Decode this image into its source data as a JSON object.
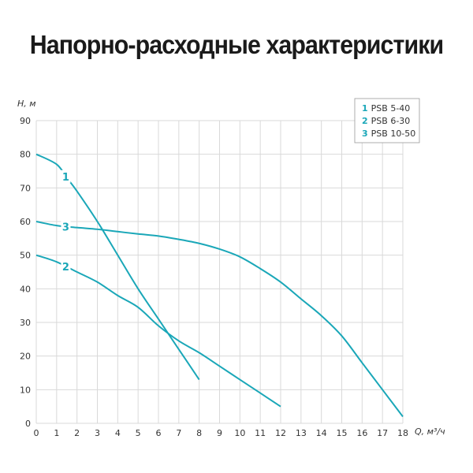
{
  "chart_data": {
    "type": "line",
    "title": "Напорно-расходные характеристики",
    "xlabel": "Q, м³/ч",
    "ylabel": "H, м",
    "xlim": [
      0,
      18
    ],
    "ylim": [
      0,
      90
    ],
    "xticks": [
      0,
      1,
      2,
      3,
      4,
      5,
      6,
      7,
      8,
      9,
      10,
      11,
      12,
      13,
      14,
      15,
      16,
      17,
      18
    ],
    "yticks": [
      0,
      10,
      20,
      30,
      40,
      50,
      60,
      70,
      80,
      90
    ],
    "grid": true,
    "legend_position": "top-right",
    "color": "#1aa7b8",
    "series": [
      {
        "id": "1",
        "name": "PSB 5-40",
        "x": [
          0,
          1,
          1.5,
          2,
          3,
          4,
          5,
          6,
          7,
          8
        ],
        "y": [
          80,
          77,
          73,
          69,
          60,
          50,
          40,
          31,
          22,
          13
        ]
      },
      {
        "id": "2",
        "name": "PSB 6-30",
        "x": [
          0,
          1,
          2,
          3,
          4,
          5,
          6,
          7,
          8,
          9,
          10,
          11,
          12
        ],
        "y": [
          50,
          48,
          45,
          42,
          38,
          34.5,
          29,
          24.5,
          21,
          17,
          13,
          9,
          5
        ]
      },
      {
        "id": "3",
        "name": "PSB 10-50",
        "x": [
          0,
          1,
          2,
          3,
          4,
          5,
          6,
          7,
          8,
          9,
          10,
          11,
          12,
          13,
          14,
          15,
          16,
          17,
          18
        ],
        "y": [
          60,
          58.8,
          58.2,
          57.7,
          57,
          56.3,
          55.7,
          54.7,
          53.5,
          51.8,
          49.5,
          46,
          42,
          37,
          32,
          26,
          18,
          10,
          2
        ]
      }
    ]
  }
}
